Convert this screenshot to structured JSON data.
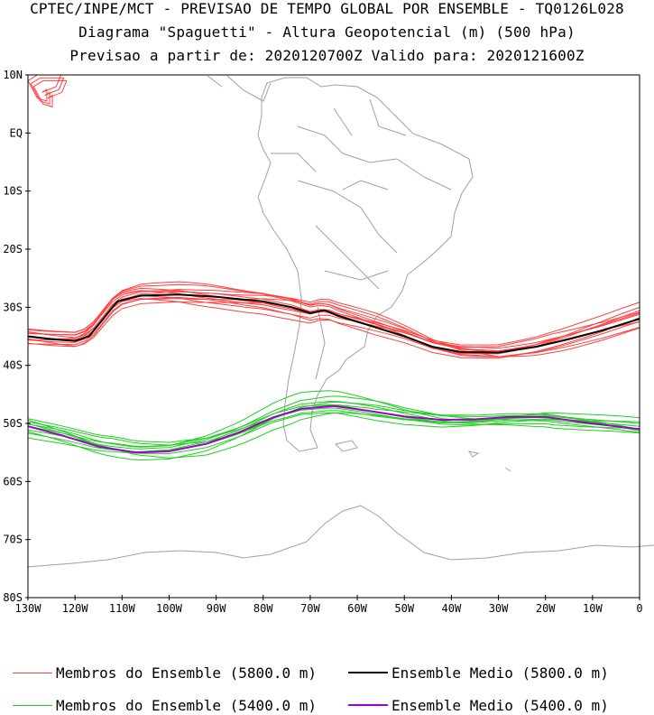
{
  "titles": {
    "line1": "CPTEC/INPE/MCT - PREVISAO DE TEMPO GLOBAL POR ENSEMBLE - TQ0126L028",
    "line2": "Diagrama \"Spaguetti\" - Altura Geopotencial (m) (500 hPa)",
    "line3": "Previsao a partir de: 2020120700Z  Valido para: 2020121600Z"
  },
  "axes": {
    "lat_labels": [
      "10N",
      "EQ",
      "10S",
      "20S",
      "30S",
      "40S",
      "50S",
      "60S",
      "70S",
      "80S"
    ],
    "lon_labels": [
      "130W",
      "120W",
      "110W",
      "100W",
      "90W",
      "80W",
      "70W",
      "60W",
      "50W",
      "40W",
      "30W",
      "20W",
      "10W",
      "0"
    ]
  },
  "legend": [
    {
      "label": "Membros do Ensemble (5800.0 m)",
      "color": "#ff4040"
    },
    {
      "label": "Ensemble Medio (5800.0 m)",
      "color": "#000000"
    },
    {
      "label": "Membros do Ensemble (5400.0 m)",
      "color": "#22cc22"
    },
    {
      "label": "Ensemble Medio (5400.0 m)",
      "color": "#a000c8"
    }
  ],
  "map_data": {
    "lon_range": [
      -130,
      0
    ],
    "lat_range": [
      -80,
      10
    ],
    "mean_5800": [
      [
        -130,
        -35
      ],
      [
        -125,
        -35.5
      ],
      [
        -120,
        -35.8
      ],
      [
        -117,
        -35
      ],
      [
        -114,
        -32
      ],
      [
        -111,
        -29
      ],
      [
        -106,
        -28
      ],
      [
        -98,
        -27.8
      ],
      [
        -90,
        -28.2
      ],
      [
        -80,
        -29
      ],
      [
        -74,
        -30
      ],
      [
        -70,
        -31
      ],
      [
        -67,
        -30.5
      ],
      [
        -64,
        -31.5
      ],
      [
        -58,
        -33
      ],
      [
        -50,
        -35
      ],
      [
        -44,
        -36.8
      ],
      [
        -38,
        -37.7
      ],
      [
        -30,
        -37.8
      ],
      [
        -22,
        -36.8
      ],
      [
        -15,
        -35.5
      ],
      [
        -8,
        -34
      ],
      [
        0,
        -32
      ]
    ],
    "mean_5400": [
      [
        -130,
        -50.5
      ],
      [
        -123,
        -52
      ],
      [
        -115,
        -54
      ],
      [
        -107,
        -55
      ],
      [
        -100,
        -54.8
      ],
      [
        -92,
        -53.5
      ],
      [
        -85,
        -51.5
      ],
      [
        -78,
        -49
      ],
      [
        -72,
        -47.5
      ],
      [
        -65,
        -47
      ],
      [
        -58,
        -47.8
      ],
      [
        -50,
        -48.8
      ],
      [
        -42,
        -49.4
      ],
      [
        -35,
        -49.3
      ],
      [
        -28,
        -48.9
      ],
      [
        -20,
        -48.9
      ],
      [
        -12,
        -49.8
      ],
      [
        -5,
        -50.5
      ],
      [
        0,
        -51
      ]
    ],
    "members_5800": [
      {
        "dlat": [
          0,
          0.5,
          1,
          1.5,
          1,
          0.5,
          0,
          0
        ],
        "shift": 0
      },
      {
        "dlat": [
          -1,
          -1,
          -0.5,
          -1,
          -1.5,
          -1,
          -0.5,
          0
        ],
        "shift": 0.4
      },
      {
        "dlat": [
          1,
          1.5,
          2,
          1,
          0.5,
          1,
          1.5,
          1
        ],
        "shift": -0.3
      },
      {
        "dlat": [
          0,
          -0.5,
          -1.5,
          -2,
          -1,
          0,
          0.5,
          1
        ],
        "shift": 0.7
      },
      {
        "dlat": [
          0.5,
          1,
          0,
          -0.5,
          0.5,
          1.5,
          2,
          2.5
        ],
        "shift": -0.6
      },
      {
        "dlat": [
          -0.5,
          0,
          0.5,
          0.5,
          0,
          -0.5,
          -1,
          -1.5
        ],
        "shift": 0.2
      },
      {
        "dlat": [
          1.5,
          1,
          0.5,
          0,
          -0.5,
          0,
          1,
          0.5
        ],
        "shift": -0.8
      },
      {
        "dlat": [
          -1.5,
          -1,
          0,
          1,
          1.5,
          1,
          0,
          -1
        ],
        "shift": 1.0
      },
      {
        "dlat": [
          0,
          1,
          2,
          2,
          1,
          0,
          -1,
          -2
        ],
        "shift": -1.1
      },
      {
        "dlat": [
          1,
          0,
          -1,
          -1,
          0,
          1,
          1,
          0.5
        ],
        "shift": 0.5
      },
      {
        "dlat": [
          -0.5,
          -1.5,
          -1,
          0,
          0.5,
          -0.5,
          -1,
          -0.5
        ],
        "shift": -0.2
      },
      {
        "dlat": [
          0.5,
          0.5,
          1,
          1.5,
          2,
          1,
          0.5,
          1.5
        ],
        "shift": 0.9
      }
    ],
    "members_5400": [
      {
        "dlat": [
          0,
          1,
          1,
          0.5,
          0,
          -0.5,
          0,
          0.5
        ],
        "shift": 0
      },
      {
        "dlat": [
          1,
          1.5,
          0.5,
          -0.5,
          -1,
          -0.5,
          0,
          1
        ],
        "shift": 0.5
      },
      {
        "dlat": [
          -1,
          -1.5,
          -1,
          0,
          1,
          1,
          0.5,
          -0.5
        ],
        "shift": -0.4
      },
      {
        "dlat": [
          0.5,
          -0.5,
          -1.5,
          -2,
          -1,
          0,
          1,
          1.5
        ],
        "shift": 0.8
      },
      {
        "dlat": [
          -0.5,
          0,
          1,
          1.5,
          1.5,
          0.5,
          -0.5,
          -1
        ],
        "shift": -0.7
      },
      {
        "dlat": [
          1.5,
          2,
          1,
          0,
          -0.5,
          -1,
          -1,
          0
        ],
        "shift": 0.3
      },
      {
        "dlat": [
          -1.5,
          -1,
          0,
          0.5,
          0,
          0.5,
          1,
          0.5
        ],
        "shift": -1.0
      },
      {
        "dlat": [
          0,
          0.5,
          2,
          2.5,
          1.5,
          0.5,
          0,
          -0.5
        ],
        "shift": 1.1
      },
      {
        "dlat": [
          1,
          0,
          -0.5,
          -1,
          -1.5,
          -1,
          -0.5,
          0
        ],
        "shift": -0.2
      },
      {
        "dlat": [
          -1,
          -0.5,
          0.5,
          1,
          0.5,
          -0.5,
          -1.5,
          -1
        ],
        "shift": 0.6
      }
    ],
    "loop_5800": [
      [
        -127,
        7
      ],
      [
        -124,
        8
      ],
      [
        -123,
        10
      ],
      [
        -128,
        10
      ],
      [
        -130,
        9
      ],
      [
        -128,
        6
      ],
      [
        -126,
        5.5
      ],
      [
        -126,
        7.5
      ]
    ]
  }
}
